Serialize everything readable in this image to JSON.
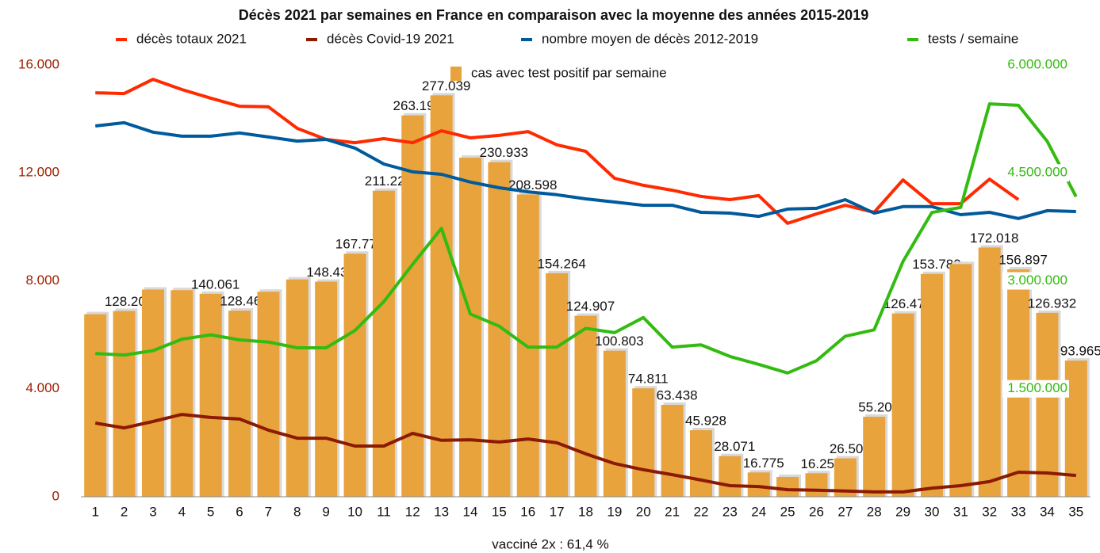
{
  "chart_data": {
    "type": "combo",
    "title": "Décès 2021 par semaines en France en comparaison avec la moyenne des années 2015-2019",
    "annotation": "vacciné 2x : 61,4 %",
    "categories": [
      "1",
      "2",
      "3",
      "4",
      "5",
      "6",
      "7",
      "8",
      "9",
      "10",
      "11",
      "12",
      "13",
      "14",
      "15",
      "16",
      "17",
      "18",
      "19",
      "20",
      "21",
      "22",
      "23",
      "24",
      "25",
      "26",
      "27",
      "28",
      "29",
      "30",
      "31",
      "32",
      "33",
      "34",
      "35"
    ],
    "ylim": [
      0,
      16000
    ],
    "yticks": [
      0,
      {
        "value": 4000,
        "label": "4.000"
      },
      {
        "value": 8000,
        "label": "8.000"
      },
      {
        "value": 12000,
        "label": "12.000"
      },
      {
        "value": 16000,
        "label": "16.000"
      }
    ],
    "y2lim": [
      0,
      6000000
    ],
    "y2ticks": [
      {
        "value": 1500000,
        "label": "1.500.000"
      },
      {
        "value": 3000000,
        "label": "3.000.000"
      },
      {
        "value": 4500000,
        "label": "4.500.000"
      },
      {
        "value": 6000000,
        "label": "6.000.000"
      }
    ],
    "y3lim": [
      0,
      298000
    ],
    "grid": false,
    "series": [
      {
        "name": "décès totaux 2021",
        "type": "line",
        "axis": "y",
        "color": "#ff2a00",
        "values": [
          14970,
          14940,
          15470,
          15090,
          14770,
          14470,
          14450,
          13650,
          13240,
          13120,
          13270,
          13120,
          13560,
          13300,
          13390,
          13530,
          13040,
          12800,
          11800,
          11540,
          11360,
          11130,
          11010,
          11160,
          10130,
          10480,
          10800,
          10540,
          11740,
          10860,
          10860,
          11770,
          11010,
          null,
          null
        ]
      },
      {
        "name": "décès Covid-19 2021",
        "type": "line",
        "axis": "y",
        "color": "#8b1a00",
        "values": [
          2730,
          2550,
          2790,
          3050,
          2940,
          2880,
          2470,
          2170,
          2170,
          1880,
          1880,
          2350,
          2090,
          2110,
          2030,
          2140,
          2000,
          1590,
          1230,
          1000,
          820,
          620,
          410,
          380,
          260,
          240,
          210,
          180,
          180,
          320,
          410,
          560,
          910,
          880,
          790
        ]
      },
      {
        "name": "nombre moyen de décès 2012-2019",
        "type": "line",
        "axis": "y",
        "color": "#005a9c",
        "values": [
          13740,
          13860,
          13510,
          13360,
          13360,
          13480,
          13330,
          13180,
          13240,
          12920,
          12330,
          12040,
          11950,
          11660,
          11450,
          11300,
          11190,
          11040,
          10920,
          10800,
          10800,
          10540,
          10510,
          10390,
          10660,
          10690,
          11010,
          10510,
          10750,
          10750,
          10450,
          10540,
          10310,
          10600,
          10570
        ]
      },
      {
        "name": "tests / semaine",
        "type": "line",
        "axis": "y2",
        "color": "#33bb11",
        "values": [
          1990000,
          1970000,
          2030000,
          2190000,
          2250000,
          2180000,
          2150000,
          2070000,
          2070000,
          2310000,
          2710000,
          3230000,
          3730000,
          2540000,
          2370000,
          2080000,
          2080000,
          2340000,
          2280000,
          2490000,
          2080000,
          2110000,
          1950000,
          1840000,
          1720000,
          1890000,
          2230000,
          2320000,
          3270000,
          3950000,
          4020000,
          5460000,
          5440000,
          4940000,
          4170000
        ]
      },
      {
        "name": "cas avec test positif par semaine",
        "type": "bar",
        "axis": "y3",
        "color": "#e8a33d",
        "values": [
          126000,
          128208,
          143000,
          142600,
          140061,
          128463,
          141500,
          150000,
          148433,
          167774,
          211220,
          263192,
          277039,
          234000,
          230933,
          208598,
          154264,
          124907,
          100803,
          74811,
          63438,
          45928,
          28071,
          16775,
          13700,
          16255,
          26509,
          55206,
          126475,
          153780,
          160600,
          172018,
          156897,
          126932,
          93965
        ],
        "value_labels": [
          null,
          "128.208",
          null,
          null,
          "140.061",
          "128.463",
          null,
          null,
          "148.433",
          "167.774",
          "211.220",
          "263.192",
          "277.039",
          null,
          "230.933",
          "208.598",
          "154.264",
          "124.907",
          "100.803",
          "74.811",
          "63.438",
          "45.928",
          "28.071",
          "16.775",
          null,
          "16.255",
          "26.509",
          "55.206",
          "126.475",
          "153.780",
          null,
          "172.018",
          "156.897",
          "126.932",
          "93.965"
        ]
      }
    ]
  }
}
